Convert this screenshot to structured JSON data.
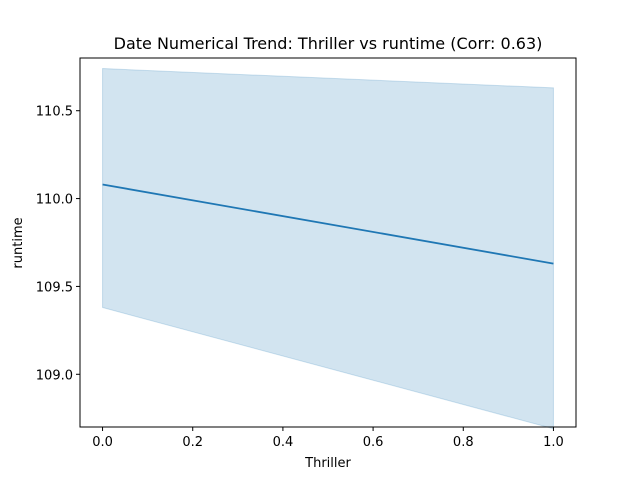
{
  "chart_data": {
    "type": "line",
    "title": "Date Numerical Trend: Thriller vs runtime (Corr: 0.63)",
    "xlabel": "Thriller",
    "ylabel": "runtime",
    "xlim": [
      -0.05,
      1.05
    ],
    "ylim": [
      108.7,
      110.8
    ],
    "x_ticks": [
      0.0,
      0.2,
      0.4,
      0.6,
      0.8,
      1.0
    ],
    "x_tick_labels": [
      "0.0",
      "0.2",
      "0.4",
      "0.6",
      "0.8",
      "1.0"
    ],
    "y_ticks": [
      109.0,
      109.5,
      110.0,
      110.5
    ],
    "y_tick_labels": [
      "109.0",
      "109.5",
      "110.0",
      "110.5"
    ],
    "grid": false,
    "series": [
      {
        "x": [
          0.0,
          1.0
        ],
        "y": [
          110.08,
          109.63
        ],
        "ci_lower": [
          109.38,
          108.69
        ],
        "ci_upper": [
          110.74,
          110.63
        ],
        "color": "#1f77b4",
        "band_color": "#1f77b4"
      }
    ]
  }
}
